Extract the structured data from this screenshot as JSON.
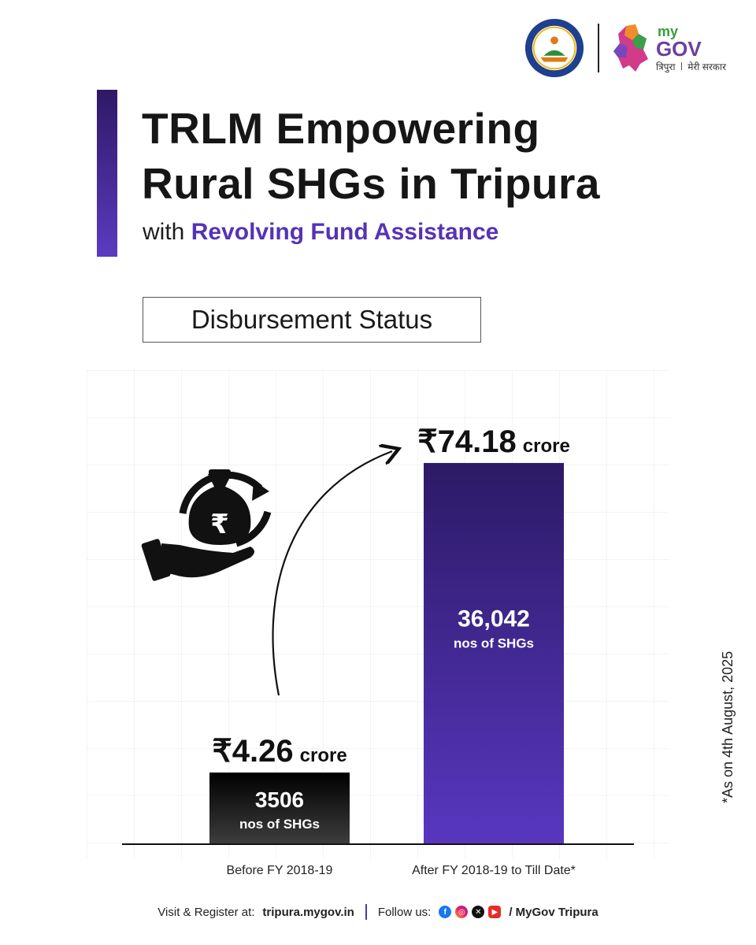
{
  "header": {
    "seal_logo_icon": "trlm-seal-icon",
    "mygov_logo": {
      "state": "त्रिपुरा",
      "my": "my",
      "gov": "GOV",
      "tagline": "मेरी सरकार"
    }
  },
  "title_line1": "TRLM Empowering",
  "title_line2": "Rural SHGs in Tripura",
  "subtitle_prefix": "with",
  "subtitle_highlight": "Revolving Fund Assistance",
  "section_label": "Disbursement Status",
  "icon": "money-bag-hand-icon",
  "chart_data": {
    "type": "bar",
    "categories": [
      "Before FY 2018-19",
      "After FY 2018-19 to Till Date*"
    ],
    "values": [
      4.26,
      74.18
    ],
    "value_labels": [
      "₹4.26",
      "₹74.18"
    ],
    "value_unit": "crore",
    "shg_counts": [
      "3506",
      "36,042"
    ],
    "shg_unit": "nos of SHGs",
    "ylim": [
      0,
      80
    ],
    "grid": false,
    "colors": [
      "#111111",
      "#4f32b3"
    ],
    "annotation": "growth-arrow"
  },
  "side_note": "*As on 4th August, 2025",
  "footer": {
    "visit_label": "Visit & Register at:",
    "url": "tripura.mygov.in",
    "follow_label": "Follow us:",
    "social_icons": [
      "facebook-icon",
      "instagram-icon",
      "x-icon",
      "youtube-icon"
    ],
    "handle": "/ MyGov Tripura"
  }
}
